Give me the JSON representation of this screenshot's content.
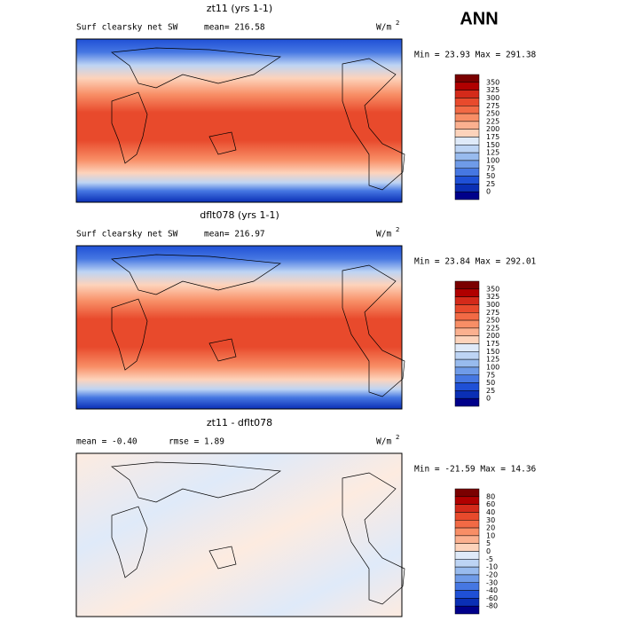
{
  "header": {
    "season": "ANN"
  },
  "colorbar_colors": [
    "#7a0000",
    "#b00000",
    "#d42a1a",
    "#e84a2c",
    "#f26a45",
    "#f88e66",
    "#fbb08f",
    "#fdd3bb",
    "#fff3ea",
    "#dfeaf9",
    "#bdd4f4",
    "#98bbee",
    "#6f9be8",
    "#4677e2",
    "#1f50d6",
    "#0a2fb5",
    "#00008a"
  ],
  "panels": [
    {
      "title": "zt11 (yrs 1-1)",
      "left_label": "Surf clearsky net SW",
      "stat": "mean= 216.58",
      "units": "W/m",
      "units_sup": "2",
      "minmax": "Min =  23.93 Max = 291.38",
      "colorbar_labels": [
        "350",
        "325",
        "300",
        "275",
        "250",
        "225",
        "200",
        "175",
        "150",
        "125",
        "100",
        "75",
        "50",
        "25",
        "0"
      ]
    },
    {
      "title": "dflt078 (yrs 1-1)",
      "left_label": "Surf clearsky net SW",
      "stat": "mean= 216.97",
      "units": "W/m",
      "units_sup": "2",
      "minmax": "Min =  23.84 Max = 292.01",
      "colorbar_labels": [
        "350",
        "325",
        "300",
        "275",
        "250",
        "225",
        "200",
        "175",
        "150",
        "125",
        "100",
        "75",
        "50",
        "25",
        "0"
      ]
    },
    {
      "title": "zt11 - dflt078",
      "left_label": "mean =  -0.40",
      "stat": "rmse =   1.89",
      "units": "W/m",
      "units_sup": "2",
      "minmax": "Min = -21.59 Max =  14.36",
      "colorbar_labels": [
        "80",
        "60",
        "40",
        "30",
        "20",
        "10",
        "5",
        "0",
        "-5",
        "-10",
        "-20",
        "-30",
        "-40",
        "-60",
        "-80"
      ]
    }
  ]
}
